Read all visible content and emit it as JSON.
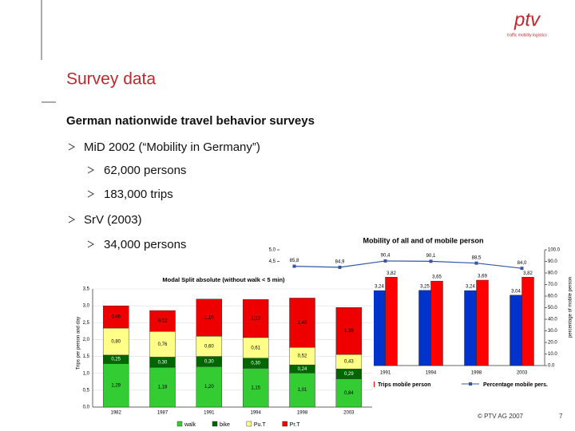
{
  "header": {
    "logo": "ptv",
    "tagline": "traffic mobility logistics"
  },
  "title": "Survey data",
  "heading": "German nationwide travel behavior surveys",
  "bullets": [
    {
      "text": "MiD 2002 (“Mobility in Germany”)",
      "sub": [
        "62,000 persons",
        "183,000 trips"
      ]
    },
    {
      "text": "SrV (2003)",
      "sub": [
        "34,000 persons"
      ]
    }
  ],
  "footer": {
    "copyright": "© PTV AG 2007",
    "page": "7"
  },
  "chart_data": [
    {
      "type": "combo",
      "title": "Mobility of all and of mobile person",
      "y2label": "percentage of mobile person",
      "categories": [
        null,
        null,
        "1991",
        "1994",
        "1998",
        "2003"
      ],
      "ylim": [
        0,
        5
      ],
      "yticks": [
        {
          "value": 5,
          "label": "5,0"
        },
        {
          "value": 4.5,
          "label": "4,5"
        }
      ],
      "y2lim": [
        0,
        100
      ],
      "y2ticks": [
        {
          "value": 0,
          "label": "0.0"
        },
        {
          "value": 10,
          "label": "10.0"
        },
        {
          "value": 20,
          "label": "20.0"
        },
        {
          "value": 30,
          "label": "30.0"
        },
        {
          "value": 40,
          "label": "40.0"
        },
        {
          "value": 50,
          "label": "50.0"
        },
        {
          "value": 60,
          "label": "60.0"
        },
        {
          "value": 70,
          "label": "70.0"
        },
        {
          "value": 80,
          "label": "80.0"
        },
        {
          "value": 90,
          "label": "90.0"
        },
        {
          "value": 100,
          "label": "100.0"
        }
      ],
      "series": [
        {
          "type": "bar",
          "color": "#0033cc",
          "values": [
            null,
            null,
            3.24,
            3.25,
            3.24,
            3.04
          ],
          "value_labels": [
            null,
            null,
            "3,24",
            "3,25",
            "3,24",
            "3,04"
          ]
        },
        {
          "type": "bar",
          "name": "Trips mobile person",
          "color": "#ff0000",
          "values": [
            null,
            null,
            3.82,
            3.65,
            3.69,
            3.82
          ],
          "value_labels": [
            null,
            null,
            "3,82",
            "3,65",
            "3,69",
            "3,82"
          ]
        },
        {
          "type": "line",
          "name": "Percentage mobile pers.",
          "color": "#3355aa",
          "axis": "y2",
          "values": [
            85.8,
            84.9,
            90.4,
            90.1,
            88.5,
            84.0
          ],
          "value_labels": [
            "85,8",
            "84,9",
            "90,4",
            "90,1",
            "88,5",
            "84,0"
          ]
        }
      ]
    },
    {
      "type": "stacked-bar",
      "title": "Modal Split absolute (without walk < 5 min)",
      "ylabel": "Trips per person and day",
      "categories": [
        "1982",
        "1987",
        "1991",
        "1994",
        "1998",
        "2003"
      ],
      "ylim": [
        0,
        3.5
      ],
      "yticks": [
        {
          "value": 0,
          "label": "0,0"
        },
        {
          "value": 0.5,
          "label": "0,5"
        },
        {
          "value": 1,
          "label": "1,0"
        },
        {
          "value": 1.5,
          "label": "1,5"
        },
        {
          "value": 2,
          "label": "2,0"
        },
        {
          "value": 2.5,
          "label": "2,5"
        },
        {
          "value": 3,
          "label": "3,0"
        },
        {
          "value": 3.5,
          "label": "3,5"
        }
      ],
      "grid": true,
      "series": [
        {
          "name": "walk",
          "color": "#33cc33",
          "values": [
            1.29,
            1.18,
            1.2,
            1.15,
            1.01,
            0.84
          ],
          "value_labels": [
            "1,29",
            "1,18",
            "1,20",
            "1,15",
            "1,01",
            "0,84"
          ]
        },
        {
          "name": "bike",
          "color": "#006600",
          "values": [
            0.25,
            0.3,
            0.3,
            0.3,
            0.24,
            0.29
          ],
          "value_labels": [
            "0,25",
            "0,30",
            "0,30",
            "0,30",
            "0,24",
            "0,29"
          ]
        },
        {
          "name": "Pu.T",
          "color": "#ffff88",
          "values": [
            0.8,
            0.76,
            0.6,
            0.61,
            0.52,
            0.43
          ],
          "value_labels": [
            "0,80",
            "0,76",
            "0,60",
            "0,61",
            "0,52",
            "0,43"
          ]
        },
        {
          "name": "Pr.T",
          "color": "#ee0000",
          "values": [
            0.66,
            0.62,
            1.1,
            1.13,
            1.46,
            1.39
          ],
          "value_labels": [
            "0,66",
            "0,62",
            "1,10",
            "1,13",
            "1,46",
            "1,39"
          ]
        }
      ]
    }
  ]
}
